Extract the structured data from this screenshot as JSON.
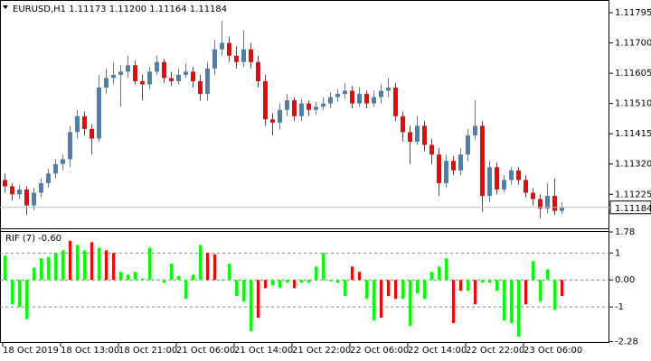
{
  "chart_data": [
    {
      "type": "candlestick",
      "title": "EURUSD,H1  1.11173 1.11200 1.11164 1.11184",
      "categories": [
        "18 Oct 2019",
        null,
        null,
        null,
        null,
        null,
        null,
        null,
        "18 Oct 13:00",
        null,
        null,
        null,
        null,
        null,
        null,
        null,
        "18 Oct 21:00",
        null,
        null,
        null,
        null,
        null,
        null,
        null,
        "21 Oct 06:00",
        null,
        null,
        null,
        null,
        null,
        null,
        null,
        "21 Oct 14:00",
        null,
        null,
        null,
        null,
        null,
        null,
        null,
        "21 Oct 22:00",
        null,
        null,
        null,
        null,
        null,
        null,
        null,
        "22 Oct 06:00",
        null,
        null,
        null,
        null,
        null,
        null,
        null,
        "22 Oct 14:00",
        null,
        null,
        null,
        null,
        null,
        null,
        null,
        "22 Oct 22:00",
        null,
        null,
        null,
        null,
        null,
        null,
        null,
        "23 Oct 06:00",
        null,
        null,
        null,
        null,
        null
      ],
      "open": [
        1.1127,
        1.1125,
        1.11225,
        1.1124,
        1.1119,
        1.1123,
        1.1126,
        1.1129,
        1.1132,
        1.11335,
        1.1142,
        1.1147,
        1.1143,
        1.114,
        1.1156,
        1.1159,
        1.116,
        1.1161,
        1.1163,
        1.1158,
        1.1157,
        1.1161,
        1.1164,
        1.1159,
        1.1158,
        1.116,
        1.1161,
        1.1158,
        1.1154,
        1.1162,
        1.1168,
        1.117,
        1.1166,
        1.1164,
        1.1168,
        1.1164,
        1.1158,
        1.1146,
        1.1145,
        1.1149,
        1.1152,
        1.1147,
        1.1151,
        1.1149,
        1.115,
        1.1151,
        1.1153,
        1.1154,
        1.1155,
        1.1151,
        1.1154,
        1.1151,
        1.1153,
        1.1155,
        1.1156,
        1.1147,
        1.1142,
        1.1139,
        1.1144,
        1.1138,
        1.1135,
        1.1126,
        1.1133,
        1.113,
        1.1135,
        1.1141,
        1.1144,
        1.1122,
        1.1131,
        1.1124,
        1.1127,
        1.113,
        1.1127,
        1.1123,
        1.1121,
        1.1118,
        1.1122,
        1.11173
      ],
      "high": [
        1.1129,
        1.1126,
        1.11255,
        1.1125,
        1.11245,
        1.11275,
        1.11305,
        1.11335,
        1.1135,
        1.1144,
        1.1149,
        1.11485,
        1.11445,
        1.116,
        1.1162,
        1.1164,
        1.1163,
        1.1166,
        1.11645,
        1.116,
        1.11625,
        1.1166,
        1.1165,
        1.1161,
        1.1162,
        1.11635,
        1.11625,
        1.116,
        1.1164,
        1.1171,
        1.1177,
        1.1172,
        1.1169,
        1.1174,
        1.117,
        1.1166,
        1.116,
        1.1148,
        1.1151,
        1.1154,
        1.1153,
        1.11525,
        1.1152,
        1.11515,
        1.1153,
        1.11545,
        1.11555,
        1.11575,
        1.11565,
        1.1156,
        1.1155,
        1.1155,
        1.1157,
        1.1159,
        1.11575,
        1.11485,
        1.1144,
        1.1147,
        1.11455,
        1.114,
        1.1137,
        1.1135,
        1.11345,
        1.1137,
        1.1143,
        1.1152,
        1.11455,
        1.1133,
        1.11325,
        1.11285,
        1.1131,
        1.1131,
        1.11285,
        1.11245,
        1.11225,
        1.1126,
        1.11275,
        1.112
      ],
      "low": [
        1.1123,
        1.11205,
        1.1121,
        1.1116,
        1.11175,
        1.11215,
        1.11245,
        1.11275,
        1.113,
        1.1131,
        1.114,
        1.1141,
        1.1135,
        1.1139,
        1.1154,
        1.1157,
        1.115,
        1.1159,
        1.1157,
        1.1152,
        1.11555,
        1.116,
        1.11575,
        1.11565,
        1.1157,
        1.1159,
        1.1156,
        1.1152,
        1.1152,
        1.116,
        1.1166,
        1.1164,
        1.1162,
        1.11625,
        1.1162,
        1.1156,
        1.1144,
        1.1141,
        1.1143,
        1.1147,
        1.11455,
        1.11455,
        1.1147,
        1.11475,
        1.1149,
        1.11495,
        1.11515,
        1.11525,
        1.11495,
        1.115,
        1.11495,
        1.115,
        1.1151,
        1.1153,
        1.11455,
        1.1139,
        1.1132,
        1.1138,
        1.1136,
        1.1132,
        1.1122,
        1.11245,
        1.11285,
        1.11285,
        1.1133,
        1.11395,
        1.1117,
        1.112,
        1.11225,
        1.1123,
        1.11255,
        1.11255,
        1.11215,
        1.1119,
        1.1115,
        1.11165,
        1.1116,
        1.11164
      ],
      "close": [
        1.1125,
        1.11225,
        1.1124,
        1.1119,
        1.1123,
        1.1126,
        1.1129,
        1.1132,
        1.11335,
        1.1142,
        1.1147,
        1.1143,
        1.114,
        1.1156,
        1.1159,
        1.116,
        1.1161,
        1.1163,
        1.1158,
        1.1157,
        1.1161,
        1.1164,
        1.1159,
        1.1158,
        1.116,
        1.1161,
        1.1158,
        1.1154,
        1.1162,
        1.1168,
        1.117,
        1.1166,
        1.1164,
        1.1168,
        1.1164,
        1.1158,
        1.1146,
        1.1145,
        1.1149,
        1.1152,
        1.1147,
        1.1151,
        1.1149,
        1.115,
        1.1151,
        1.1153,
        1.1154,
        1.1155,
        1.1151,
        1.1154,
        1.1151,
        1.1153,
        1.1155,
        1.1156,
        1.1147,
        1.1142,
        1.1139,
        1.1144,
        1.1138,
        1.1135,
        1.1126,
        1.1133,
        1.113,
        1.1135,
        1.1141,
        1.1144,
        1.1122,
        1.1131,
        1.1124,
        1.1127,
        1.113,
        1.1127,
        1.1123,
        1.1121,
        1.1118,
        1.1122,
        1.11173,
        1.11184
      ],
      "up_color": "#4682b4",
      "down_color": "#ff0000",
      "ylim": [
        1.11121,
        1.11832
      ],
      "yticks": [
        1.11795,
        {
          "value": 1.117,
          "label": "1.11700"
        },
        1.11605,
        {
          "value": 1.1151,
          "label": "1.11510"
        },
        1.11415,
        {
          "value": 1.1132,
          "label": "1.11320"
        },
        1.11225
      ],
      "current_price": 1.11184
    },
    {
      "type": "bar",
      "title": "RIF (7) -0.60",
      "values": [
        0.9,
        -0.9,
        -1.0,
        -1.45,
        0.45,
        0.8,
        0.85,
        1.0,
        1.1,
        1.45,
        1.3,
        1.1,
        1.4,
        1.2,
        1.1,
        1.0,
        0.3,
        0.2,
        0.3,
        0.05,
        1.2,
        0.02,
        -0.1,
        0.6,
        0.15,
        -0.7,
        0.2,
        1.3,
        1.0,
        0.95,
        0.03,
        0.6,
        -0.6,
        -0.8,
        -1.9,
        -1.4,
        -0.3,
        -0.2,
        -0.3,
        -0.1,
        -0.3,
        -0.1,
        -0.1,
        0.5,
        1.0,
        -0.05,
        -0.1,
        -0.6,
        0.5,
        0.3,
        -0.7,
        -1.5,
        -1.4,
        -0.6,
        -0.7,
        -0.7,
        -1.7,
        -0.5,
        -0.7,
        0.3,
        0.5,
        0.8,
        -1.6,
        -0.4,
        -0.4,
        -0.9,
        -0.1,
        -0.1,
        -0.4,
        -1.5,
        -1.6,
        -2.1,
        -0.9,
        0.7,
        -0.8,
        0.4,
        -1.1,
        -0.6
      ],
      "colors": [
        "#00ff00",
        "#00ff00",
        "#00ff00",
        "#00ff00",
        "#00ff00",
        "#00ff00",
        "#00ff00",
        "#00ff00",
        "#00ff00",
        "#ff0000",
        "#00ff00",
        "#00ff00",
        "#ff0000",
        "#00ff00",
        "#ff0000",
        "#ff0000",
        "#00ff00",
        "#00ff00",
        "#00ff00",
        "#00ff00",
        "#00ff00",
        "#00ff00",
        "#00ff00",
        "#00ff00",
        "#00ff00",
        "#00ff00",
        "#00ff00",
        "#00ff00",
        "#ff0000",
        "#ff0000",
        "#00ff00",
        "#00ff00",
        "#00ff00",
        "#00ff00",
        "#00ff00",
        "#ff0000",
        "#ff0000",
        "#00ff00",
        "#00ff00",
        "#00ff00",
        "#ff0000",
        "#00ff00",
        "#00ff00",
        "#00ff00",
        "#00ff00",
        "#00ff00",
        "#00ff00",
        "#00ff00",
        "#ff0000",
        "#ff0000",
        "#00ff00",
        "#00ff00",
        "#ff0000",
        "#ff0000",
        "#ff0000",
        "#00ff00",
        "#00ff00",
        "#00ff00",
        "#00ff00",
        "#00ff00",
        "#00ff00",
        "#00ff00",
        "#ff0000",
        "#ff0000",
        "#00ff00",
        "#ff0000",
        "#00ff00",
        "#00ff00",
        "#00ff00",
        "#00ff00",
        "#00ff00",
        "#00ff00",
        "#ff0000",
        "#00ff00",
        "#00ff00",
        "#00ff00",
        "#00ff00",
        "#ff0000"
      ],
      "ylim": [
        -2.3,
        1.78
      ],
      "yticks": [
        1.78,
        1,
        {
          "value": 0,
          "label": "0.00"
        },
        -1,
        -2.28
      ],
      "levels": [
        1,
        0,
        -1
      ]
    }
  ]
}
